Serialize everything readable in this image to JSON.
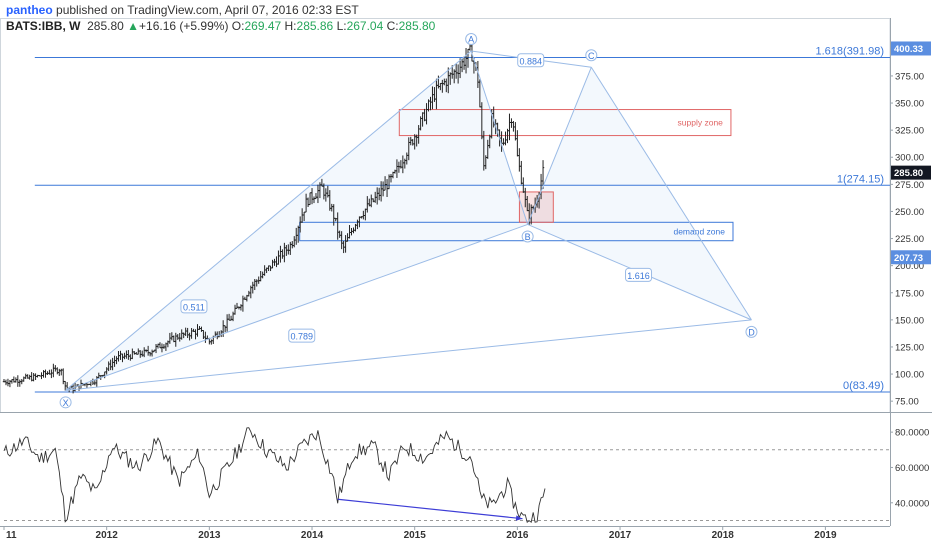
{
  "header": {
    "user": "pantheo",
    "published": "published on TradingView.com, April 07, 2016 02:33 EST",
    "symbol": "BATS:IBB, W",
    "last": "285.80",
    "change_arrow": "▲",
    "change": "+16.16 (+5.99%)",
    "open_label": "O:",
    "open": "269.47",
    "high_label": "H:",
    "high": "285.86",
    "low_label": "L:",
    "low": "267.04",
    "close_label": "C:",
    "close": "285.80"
  },
  "colors": {
    "pattern_line": "#9bbbe6",
    "pattern_fill": "#eaf2fb",
    "fib_line": "#3c78d8",
    "supply": "#e06666",
    "demand": "#3c78d8",
    "rsi_line": "#333333",
    "divergence": "#3d3dd6",
    "axis_text": "#333333"
  },
  "chart_data": [
    {
      "type": "candlestick",
      "title": "",
      "x_range": [
        2011.0,
        2019.6
      ],
      "ylim": [
        65,
        410
      ],
      "y_ticks": [
        "400.00",
        "375.00",
        "350.00",
        "325.00",
        "300.00",
        "275.00",
        "250.00",
        "225.00",
        "200.00",
        "175.00",
        "150.00",
        "125.00",
        "100.00",
        "75.00"
      ],
      "x_ticks": [
        "11",
        "2012",
        "2013",
        "2014",
        "2015",
        "2016",
        "2017",
        "2018",
        "2019"
      ],
      "price_badges": [
        {
          "label": "400.33",
          "value": 400.33,
          "style": "blue"
        },
        {
          "label": "285.80",
          "value": 285.8,
          "style": "dark"
        },
        {
          "label": "207.73",
          "value": 207.73,
          "style": "blue"
        }
      ],
      "price_path": [
        [
          2011.0,
          93
        ],
        [
          2011.3,
          97
        ],
        [
          2011.55,
          105
        ],
        [
          2011.6,
          88
        ],
        [
          2011.65,
          86
        ],
        [
          2011.9,
          95
        ],
        [
          2012.1,
          115
        ],
        [
          2012.4,
          120
        ],
        [
          2012.7,
          135
        ],
        [
          2012.9,
          140
        ],
        [
          2013.0,
          130
        ],
        [
          2013.2,
          150
        ],
        [
          2013.4,
          180
        ],
        [
          2013.6,
          200
        ],
        [
          2013.8,
          220
        ],
        [
          2013.95,
          260
        ],
        [
          2014.1,
          272
        ],
        [
          2014.2,
          250
        ],
        [
          2014.3,
          215
        ],
        [
          2014.45,
          245
        ],
        [
          2014.6,
          260
        ],
        [
          2014.8,
          283
        ],
        [
          2015.0,
          320
        ],
        [
          2015.2,
          360
        ],
        [
          2015.45,
          385
        ],
        [
          2015.55,
          398
        ],
        [
          2015.62,
          370
        ],
        [
          2015.67,
          290
        ],
        [
          2015.75,
          335
        ],
        [
          2015.85,
          310
        ],
        [
          2015.95,
          340
        ],
        [
          2016.0,
          300
        ],
        [
          2016.05,
          275
        ],
        [
          2016.1,
          245
        ],
        [
          2016.18,
          258
        ],
        [
          2016.25,
          286
        ]
      ],
      "fib_levels": [
        {
          "label": "1.618(391.98)",
          "value": 391.98
        },
        {
          "label": "1(274.15)",
          "value": 274.15
        },
        {
          "label": "0(83.49)",
          "value": 83.49
        }
      ],
      "pattern_points": [
        {
          "name": "X",
          "x": 2011.6,
          "y": 85
        },
        {
          "name": "A",
          "x": 2015.55,
          "y": 398
        },
        {
          "name": "B",
          "x": 2016.1,
          "y": 238
        },
        {
          "name": "C",
          "x": 2016.72,
          "y": 383
        },
        {
          "name": "D",
          "x": 2018.28,
          "y": 150
        }
      ],
      "pattern_ratios": [
        {
          "label": "0.511",
          "x": 2012.85,
          "y": 162
        },
        {
          "label": "0.789",
          "x": 2013.9,
          "y": 135
        },
        {
          "label": "0.884",
          "x": 2016.13,
          "y": 389
        },
        {
          "label": "1.616",
          "x": 2017.18,
          "y": 191
        }
      ],
      "zones": [
        {
          "label": "supply zone",
          "kind": "supply",
          "x0": 2014.85,
          "x1": 2018.08,
          "y0": 320,
          "y1": 344
        },
        {
          "label": "demand zone",
          "kind": "demand",
          "x0": 2013.88,
          "x1": 2018.1,
          "y0": 223,
          "y1": 240
        },
        {
          "label": "",
          "kind": "supply",
          "x0": 2016.02,
          "x1": 2016.35,
          "y0": 240,
          "y1": 268
        }
      ]
    },
    {
      "type": "line",
      "title": "",
      "ylim": [
        28,
        88
      ],
      "y_ticks": [
        "80.0000",
        "60.0000",
        "40.0000"
      ],
      "guide_levels": [
        70,
        30
      ],
      "rsi_path": [
        [
          2011.0,
          68
        ],
        [
          2011.2,
          75
        ],
        [
          2011.35,
          65
        ],
        [
          2011.5,
          70
        ],
        [
          2011.6,
          32
        ],
        [
          2011.75,
          55
        ],
        [
          2011.9,
          45
        ],
        [
          2012.05,
          72
        ],
        [
          2012.3,
          60
        ],
        [
          2012.5,
          75
        ],
        [
          2012.7,
          52
        ],
        [
          2012.9,
          68
        ],
        [
          2013.0,
          45
        ],
        [
          2013.2,
          62
        ],
        [
          2013.4,
          82
        ],
        [
          2013.55,
          70
        ],
        [
          2013.75,
          60
        ],
        [
          2013.9,
          72
        ],
        [
          2014.05,
          80
        ],
        [
          2014.2,
          55
        ],
        [
          2014.25,
          42
        ],
        [
          2014.4,
          68
        ],
        [
          2014.6,
          72
        ],
        [
          2014.75,
          55
        ],
        [
          2014.9,
          72
        ],
        [
          2015.1,
          65
        ],
        [
          2015.3,
          78
        ],
        [
          2015.45,
          70
        ],
        [
          2015.55,
          66
        ],
        [
          2015.65,
          42
        ],
        [
          2015.75,
          38
        ],
        [
          2015.9,
          50
        ],
        [
          2015.98,
          38
        ],
        [
          2016.05,
          32
        ],
        [
          2016.1,
          30
        ],
        [
          2016.2,
          34
        ],
        [
          2016.27,
          47
        ]
      ],
      "divergence": {
        "x0": 2014.25,
        "y0": 42,
        "x1": 2016.05,
        "y1": 31
      }
    }
  ]
}
